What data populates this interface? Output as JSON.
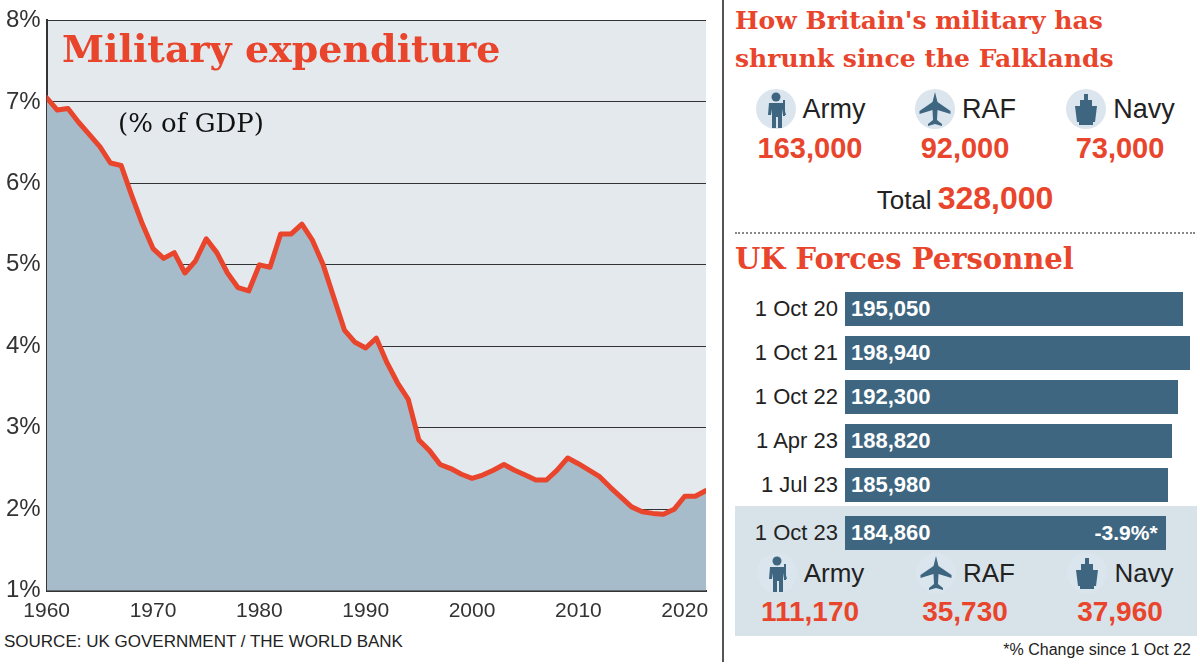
{
  "chart_data": {
    "type": "area",
    "title": "Military expenditure",
    "subtitle": "(% of GDP)",
    "x": [
      1960,
      1961,
      1962,
      1963,
      1964,
      1965,
      1966,
      1967,
      1968,
      1969,
      1970,
      1971,
      1972,
      1973,
      1974,
      1975,
      1976,
      1977,
      1978,
      1979,
      1980,
      1981,
      1982,
      1983,
      1984,
      1985,
      1986,
      1987,
      1988,
      1989,
      1990,
      1991,
      1992,
      1993,
      1994,
      1995,
      1996,
      1997,
      1998,
      1999,
      2000,
      2001,
      2002,
      2003,
      2004,
      2005,
      2006,
      2007,
      2008,
      2009,
      2010,
      2011,
      2012,
      2013,
      2014,
      2015,
      2016,
      2017,
      2018,
      2019,
      2020,
      2021,
      2022
    ],
    "values": [
      7.05,
      6.9,
      6.92,
      6.75,
      6.6,
      6.45,
      6.25,
      6.22,
      5.85,
      5.5,
      5.2,
      5.08,
      5.15,
      4.9,
      5.05,
      5.32,
      5.15,
      4.9,
      4.72,
      4.68,
      5.0,
      4.97,
      5.38,
      5.38,
      5.5,
      5.3,
      5.0,
      4.6,
      4.2,
      4.05,
      3.98,
      4.1,
      3.8,
      3.55,
      3.35,
      2.85,
      2.72,
      2.55,
      2.5,
      2.43,
      2.38,
      2.42,
      2.48,
      2.55,
      2.48,
      2.42,
      2.36,
      2.36,
      2.48,
      2.63,
      2.56,
      2.48,
      2.4,
      2.27,
      2.15,
      2.03,
      1.97,
      1.95,
      1.94,
      2.0,
      2.16,
      2.16,
      2.23
    ],
    "color": "#e8452c",
    "xlim": [
      1960,
      2022
    ],
    "xticks": [
      1960,
      1970,
      1980,
      1990,
      2000,
      2010,
      2020
    ],
    "ylim": [
      1,
      8
    ],
    "yticks": [
      {
        "value": 1,
        "label": "1%"
      },
      {
        "value": 2,
        "label": "2%"
      },
      {
        "value": 3,
        "label": "3%"
      },
      {
        "value": 4,
        "label": "4%"
      },
      {
        "value": 5,
        "label": "5%"
      },
      {
        "value": 6,
        "label": "6%"
      },
      {
        "value": 7,
        "label": "7%"
      },
      {
        "value": 8,
        "label": "8%"
      }
    ],
    "grid": true
  },
  "source": "SOURCE: UK GOVERNMENT / THE WORLD BANK",
  "falklands": {
    "title": "How Britain's military has shrunk since the Falklands",
    "branches": [
      {
        "name": "Army",
        "value": "163,000"
      },
      {
        "name": "RAF",
        "value": "92,000"
      },
      {
        "name": "Navy",
        "value": "73,000"
      }
    ],
    "total_label": "Total",
    "total": "328,000"
  },
  "personnel": {
    "title": "UK Forces Personnel",
    "rows": [
      {
        "date": "1 Oct 20",
        "value": 195050,
        "label": "195,050"
      },
      {
        "date": "1 Oct 21",
        "value": 198940,
        "label": "198,940"
      },
      {
        "date": "1 Oct 22",
        "value": 192300,
        "label": "192,300"
      },
      {
        "date": "1 Apr 23",
        "value": 188820,
        "label": "188,820"
      },
      {
        "date": "1 Jul 23",
        "value": 185980,
        "label": "185,980"
      },
      {
        "date": "1 Oct 23",
        "value": 184860,
        "label": "184,860",
        "change": "-3.9%*"
      }
    ],
    "branches": [
      {
        "name": "Army",
        "value": "111,170"
      },
      {
        "name": "RAF",
        "value": "35,730"
      },
      {
        "name": "Navy",
        "value": "37,960"
      }
    ],
    "footnote": "*% Change since 1 Oct 22"
  }
}
